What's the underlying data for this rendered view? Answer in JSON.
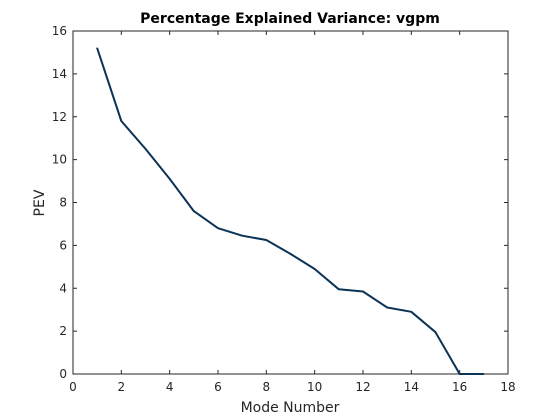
{
  "chart_data": {
    "type": "line",
    "title": "Percentage Explained Variance: vgpm",
    "xlabel": "Mode Number",
    "ylabel": "PEV",
    "xlim": [
      0,
      18
    ],
    "ylim": [
      0,
      16
    ],
    "xticks": [
      0,
      2,
      4,
      6,
      8,
      10,
      12,
      14,
      16,
      18
    ],
    "yticks": [
      0,
      2,
      4,
      6,
      8,
      10,
      12,
      14,
      16
    ],
    "grid": false,
    "series": [
      {
        "color": "#0b3356",
        "x": [
          1,
          2,
          3,
          4,
          5,
          6,
          7,
          8,
          9,
          10,
          11,
          12,
          13,
          14,
          15,
          16,
          17
        ],
        "y": [
          15.2,
          11.8,
          10.5,
          9.1,
          7.6,
          6.8,
          6.45,
          6.25,
          5.6,
          4.9,
          3.95,
          3.85,
          3.1,
          2.9,
          1.95,
          0.0,
          0.0
        ]
      }
    ]
  }
}
